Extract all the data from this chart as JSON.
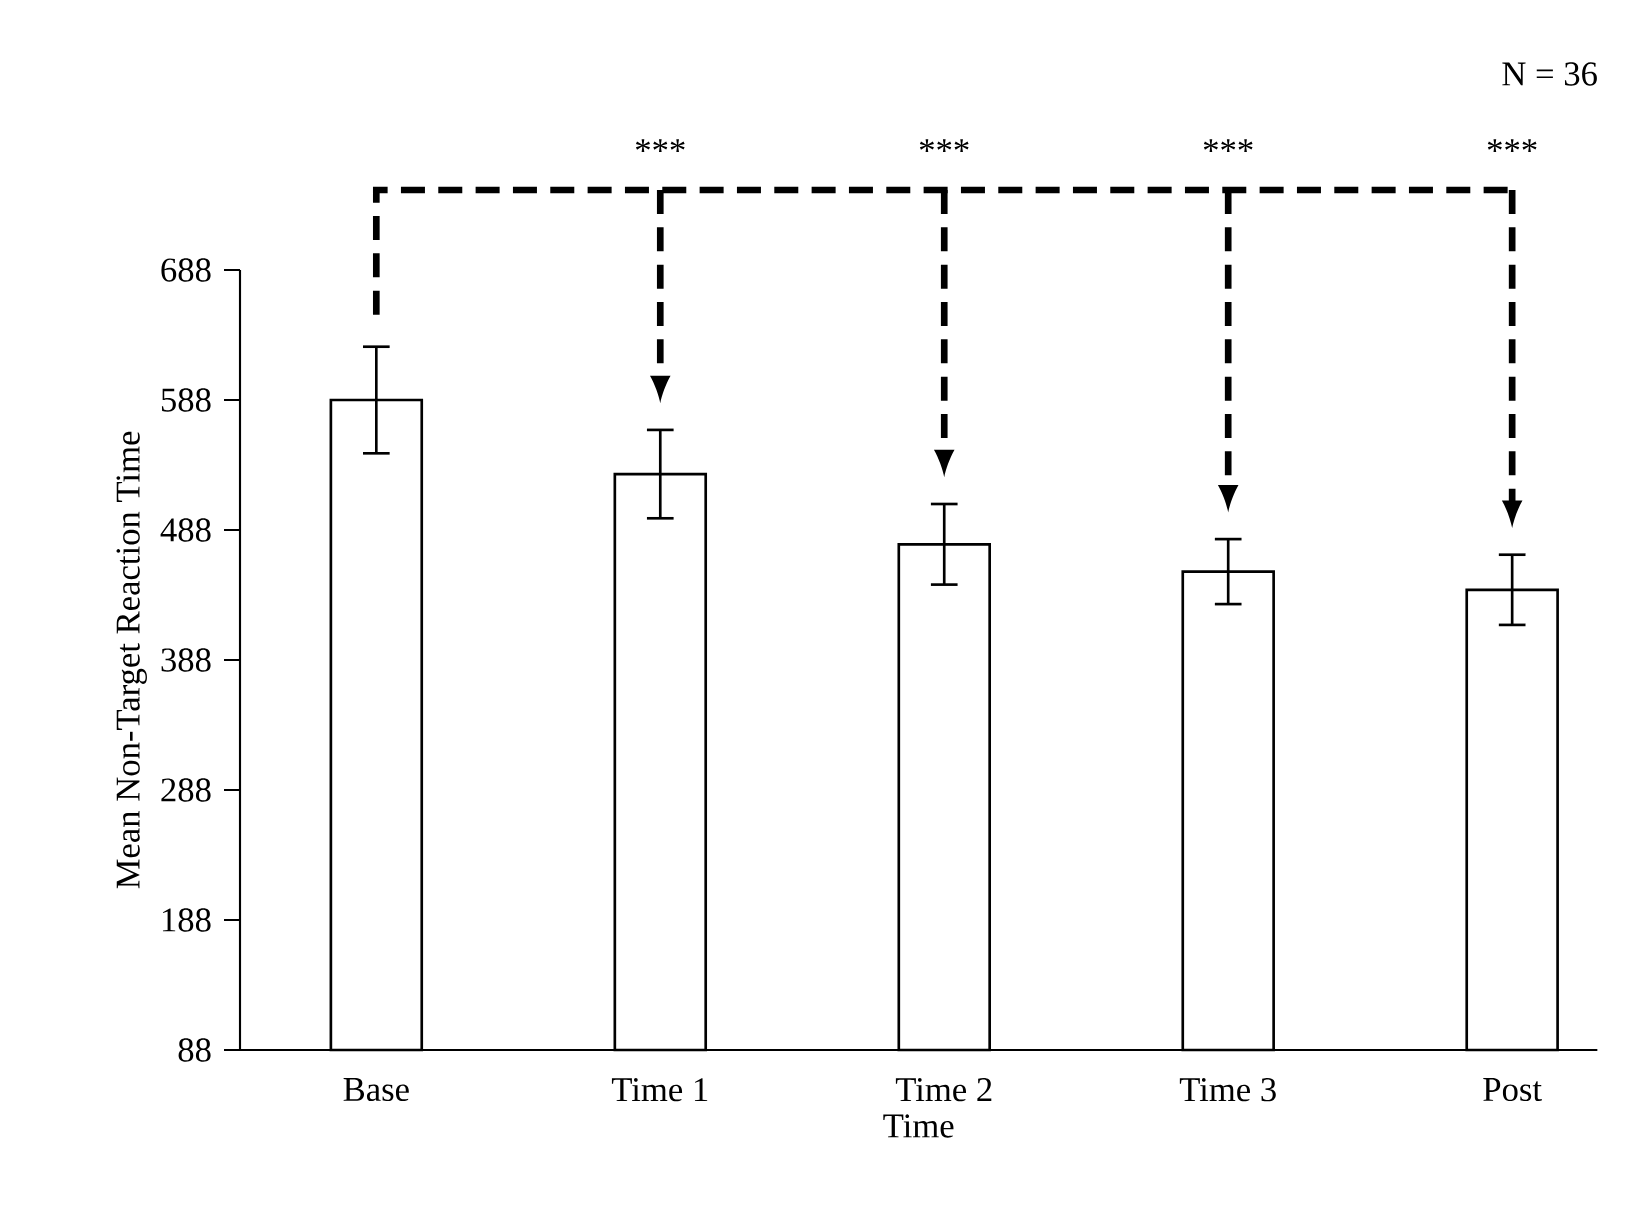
{
  "chart_data": {
    "type": "bar",
    "xlabel": "Time",
    "ylabel": "Mean Non-Target Reaction Time",
    "categories": [
      "Base",
      "Time 1",
      "Time 2",
      "Time 3",
      "Post"
    ],
    "values": [
      588,
      531,
      477,
      456,
      442
    ],
    "errors": [
      41,
      34,
      31,
      25,
      27
    ],
    "color": "#ffffff",
    "ylim": [
      88,
      688
    ],
    "yticks": [
      88,
      188,
      288,
      388,
      488,
      588,
      688
    ],
    "grid": false,
    "annotations": [
      "N = 36",
      "***",
      "***",
      "***",
      "***"
    ]
  }
}
